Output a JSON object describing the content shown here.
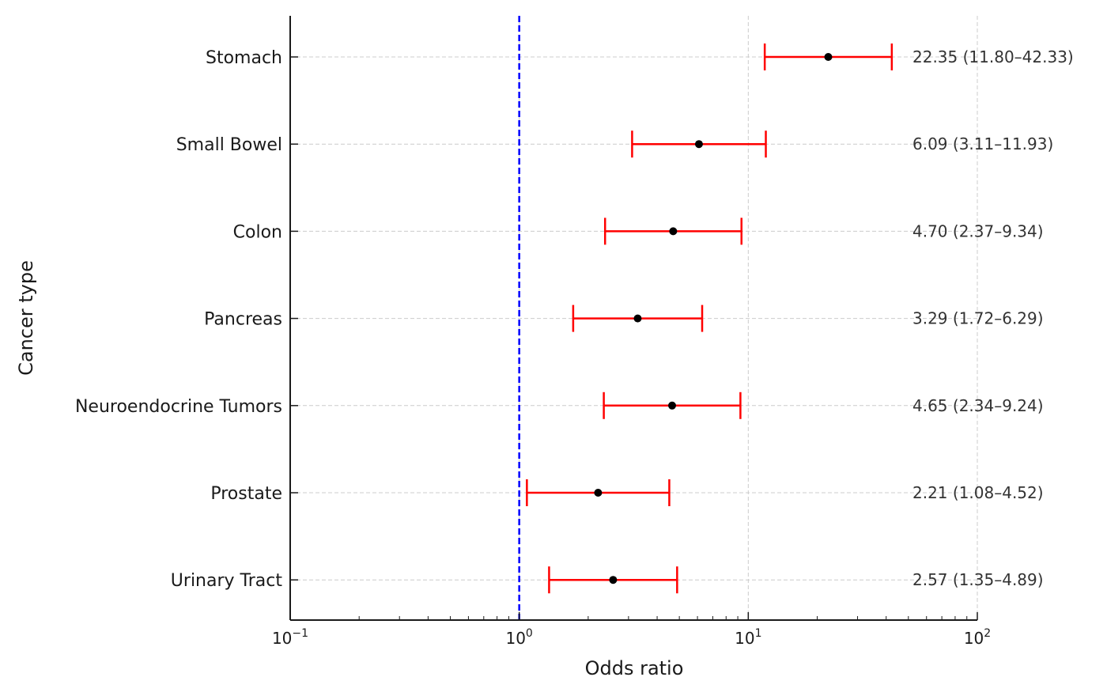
{
  "chart_data": {
    "type": "scatter",
    "subtype": "forest-plot",
    "title": "",
    "xlabel": "Odds ratio",
    "ylabel": "Cancer type",
    "xscale": "log",
    "xlim": [
      0.1,
      100
    ],
    "x_ticks": [
      {
        "value": 0.1,
        "base": "10",
        "exp": "−1"
      },
      {
        "value": 1,
        "base": "10",
        "exp": "0"
      },
      {
        "value": 10,
        "base": "10",
        "exp": "1"
      },
      {
        "value": 100,
        "base": "10",
        "exp": "2"
      }
    ],
    "reference_line": {
      "x": 1,
      "color": "#0000ff",
      "style": "dashed"
    },
    "grid": true,
    "colors": {
      "interval": "#ff0000",
      "point": "#000000",
      "reference": "#0000ff",
      "grid": "#cccccc",
      "axis": "#1a1a1a"
    },
    "categories": [
      "Stomach",
      "Small Bowel",
      "Colon",
      "Pancreas",
      "Neuroendocrine Tumors",
      "Prostate",
      "Urinary Tract"
    ],
    "or": [
      22.35,
      6.09,
      4.7,
      3.29,
      4.65,
      2.21,
      2.57
    ],
    "ci_low": [
      11.8,
      3.11,
      2.37,
      1.72,
      2.34,
      1.08,
      1.35
    ],
    "ci_high": [
      42.33,
      11.93,
      9.34,
      6.29,
      9.24,
      4.52,
      4.89
    ],
    "annotations": [
      "22.35 (11.80–42.33)",
      "6.09 (3.11–11.93)",
      "4.70 (2.37–9.34)",
      "3.29 (1.72–6.29)",
      "4.65 (2.34–9.24)",
      "2.21 (1.08–4.52)",
      "2.57 (1.35–4.89)"
    ]
  }
}
